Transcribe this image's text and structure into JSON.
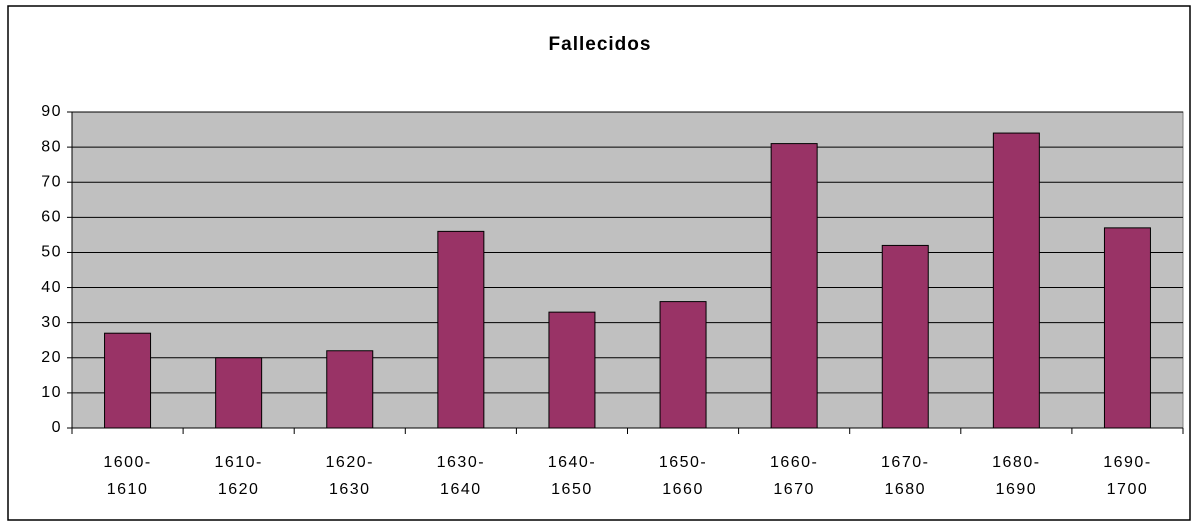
{
  "chart_data": {
    "type": "bar",
    "title": "Fallecidos",
    "categories": [
      "1600-1610",
      "1610-1620",
      "1620-1630",
      "1630-1640",
      "1640-1650",
      "1650-1660",
      "1660-1670",
      "1670-1680",
      "1680-1690",
      "1690-1700"
    ],
    "values": [
      27,
      20,
      22,
      56,
      33,
      36,
      81,
      52,
      84,
      57
    ],
    "color": "#993366",
    "ylim": [
      0,
      90
    ],
    "yticks": [
      0,
      10,
      20,
      30,
      40,
      50,
      60,
      70,
      80,
      90
    ],
    "grid": true
  }
}
